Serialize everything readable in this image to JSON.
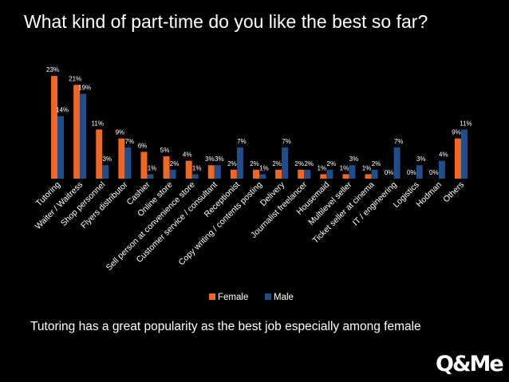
{
  "chart_data": {
    "type": "bar",
    "title": "What kind of part-time do you like the best so far?",
    "categories": [
      "Tutoring",
      "Waiter / Waitress",
      "Shop personnel",
      "Flyers distributor",
      "Cashier",
      "Online store",
      "Sell person at convenience store",
      "Customer service / consultant",
      "Receptionist",
      "Copy writing / contents posting",
      "Delivery",
      "Journalist freelancer",
      "Housemaid",
      "Multilevel seller",
      "Ticket seller at cinema",
      "IT / engineering",
      "Logistics",
      "Hodman",
      "Others"
    ],
    "series": [
      {
        "name": "Female",
        "color": "#f26522",
        "values": [
          23,
          21,
          11,
          9,
          6,
          5,
          4,
          3,
          2,
          2,
          2,
          2,
          1,
          1,
          1,
          0,
          0,
          0,
          9
        ]
      },
      {
        "name": "Male",
        "color": "#1f4e8c",
        "values": [
          14,
          19,
          3,
          7,
          1,
          2,
          1,
          3,
          7,
          1,
          7,
          2,
          2,
          3,
          2,
          7,
          3,
          4,
          11
        ]
      }
    ],
    "value_suffix": "%",
    "xlabel": "",
    "ylabel": "",
    "ylim": [
      0,
      25
    ],
    "grid": false,
    "legend": "bottom"
  },
  "caption": "Tutoring has a great popularity as the best job especially among female",
  "logo": "Q&Me"
}
